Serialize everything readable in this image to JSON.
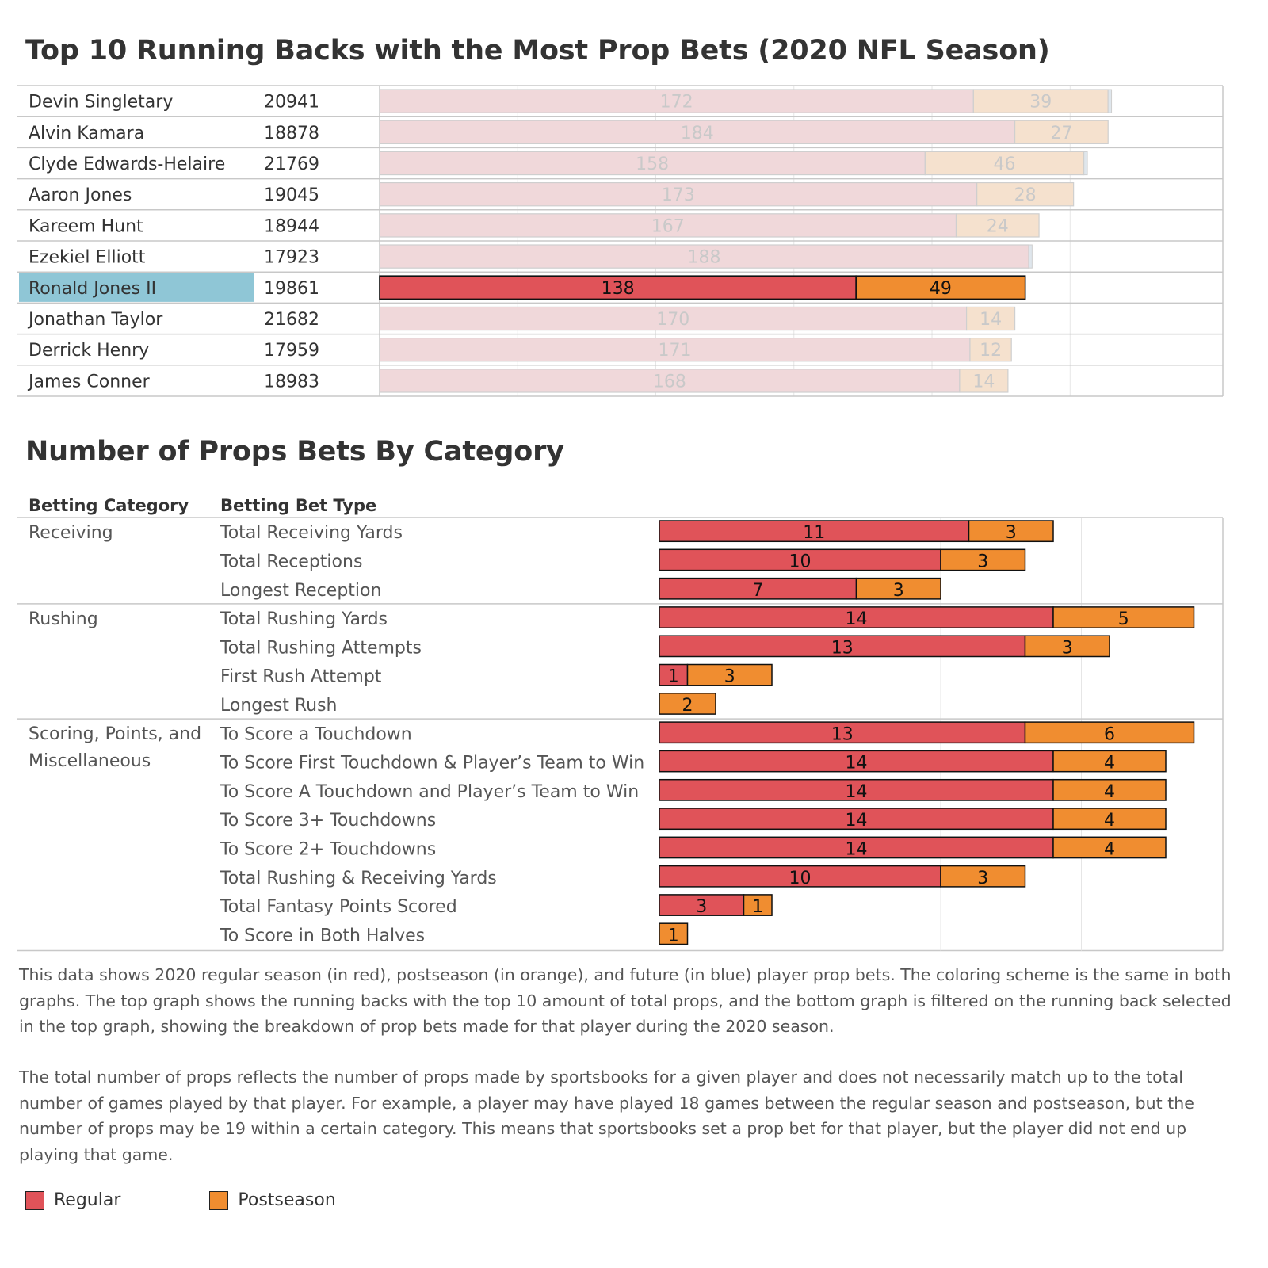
{
  "titles": {
    "top": "Top 10 Running Backs with the Most Prop Bets (2020 NFL Season)",
    "bottom": "Number of Props Bets By Category"
  },
  "colors": {
    "regular": "#e05359",
    "postseason": "#f08d30",
    "regular_faded": "#f0d8da",
    "postseason_faded": "#f5e1ce",
    "highlight": "#8fc6d6",
    "grid": "#e6e6e6",
    "separator": "#c8c8c8"
  },
  "chart_data": [
    {
      "type": "bar",
      "stacked": true,
      "orientation": "horizontal",
      "title": "Top 10 Running Backs with the Most Prop Bets (2020 NFL Season)",
      "selected": "Ronald Jones II",
      "xlim": [
        0,
        240
      ],
      "grid": true,
      "rows": [
        {
          "player": "Devin Singletary",
          "id": "20941",
          "regular": 172,
          "postseason": 39,
          "future": 1
        },
        {
          "player": "Alvin Kamara",
          "id": "18878",
          "regular": 184,
          "postseason": 27,
          "future": 0
        },
        {
          "player": "Clyde Edwards-Helaire",
          "id": "21769",
          "regular": 158,
          "postseason": 46,
          "future": 1
        },
        {
          "player": "Aaron Jones",
          "id": "19045",
          "regular": 173,
          "postseason": 28,
          "future": 0
        },
        {
          "player": "Kareem Hunt",
          "id": "18944",
          "regular": 167,
          "postseason": 24,
          "future": 0
        },
        {
          "player": "Ezekiel Elliott",
          "id": "17923",
          "regular": 188,
          "postseason": 0,
          "future": 1
        },
        {
          "player": "Ronald Jones II",
          "id": "19861",
          "regular": 138,
          "postseason": 49,
          "future": 0
        },
        {
          "player": "Jonathan Taylor",
          "id": "21682",
          "regular": 170,
          "postseason": 14,
          "future": 0
        },
        {
          "player": "Derrick Henry",
          "id": "17959",
          "regular": 171,
          "postseason": 12,
          "future": 0
        },
        {
          "player": "James Conner",
          "id": "18983",
          "regular": 168,
          "postseason": 14,
          "future": 0
        }
      ]
    },
    {
      "type": "bar",
      "stacked": true,
      "orientation": "horizontal",
      "title": "Number of Props Bets By Category",
      "column_headers": [
        "Betting Category",
        "Betting Bet Type"
      ],
      "xlim": [
        0,
        20
      ],
      "grid": true,
      "groups": [
        {
          "category": [
            "Receiving"
          ],
          "rows": [
            {
              "bet_type": "Total Receiving Yards",
              "regular": 11,
              "postseason": 3
            },
            {
              "bet_type": "Total Receptions",
              "regular": 10,
              "postseason": 3
            },
            {
              "bet_type": "Longest Reception",
              "regular": 7,
              "postseason": 3
            }
          ]
        },
        {
          "category": [
            "Rushing"
          ],
          "rows": [
            {
              "bet_type": "Total Rushing Yards",
              "regular": 14,
              "postseason": 5
            },
            {
              "bet_type": "Total Rushing Attempts",
              "regular": 13,
              "postseason": 3
            },
            {
              "bet_type": "First Rush Attempt",
              "regular": 1,
              "postseason": 3
            },
            {
              "bet_type": "Longest Rush",
              "regular": 0,
              "postseason": 2
            }
          ]
        },
        {
          "category": [
            "Scoring, Points, and",
            "Miscellaneous"
          ],
          "rows": [
            {
              "bet_type": "To Score a Touchdown",
              "regular": 13,
              "postseason": 6
            },
            {
              "bet_type": "To Score First Touchdown & Player’s Team to Win",
              "regular": 14,
              "postseason": 4
            },
            {
              "bet_type": "To Score A Touchdown and Player’s Team to Win",
              "regular": 14,
              "postseason": 4
            },
            {
              "bet_type": "To Score 3+ Touchdowns",
              "regular": 14,
              "postseason": 4
            },
            {
              "bet_type": "To Score 2+ Touchdowns",
              "regular": 14,
              "postseason": 4
            },
            {
              "bet_type": "Total Rushing & Receiving Yards",
              "regular": 10,
              "postseason": 3
            },
            {
              "bet_type": "Total Fantasy Points Scored",
              "regular": 3,
              "postseason": 1
            },
            {
              "bet_type": "To Score in Both Halves",
              "regular": 0,
              "postseason": 1
            }
          ]
        }
      ]
    }
  ],
  "description": {
    "paragraph1": "This data shows 2020 regular season (in red), postseason (in orange), and future (in blue) player prop bets. The coloring scheme is the same in both graphs. The top graph shows the running backs with the top 10 amount of total props, and the bottom graph is filtered on the running back selected in the top graph, showing the breakdown of prop bets made for that player during the 2020 season.",
    "paragraph2": "The total number of props reflects the number of props made by sportsbooks for a given player and does not necessarily match up to the total number of games played by that player. For example, a player may have played 18 games between the regular season and postseason, but the number of props may be 19 within a certain category. This means that sportsbooks set a prop bet for that player, but the player did not end up playing that game."
  },
  "legend": [
    {
      "label": "Regular",
      "color": "#e05359"
    },
    {
      "label": "Postseason",
      "color": "#f08d30"
    }
  ]
}
